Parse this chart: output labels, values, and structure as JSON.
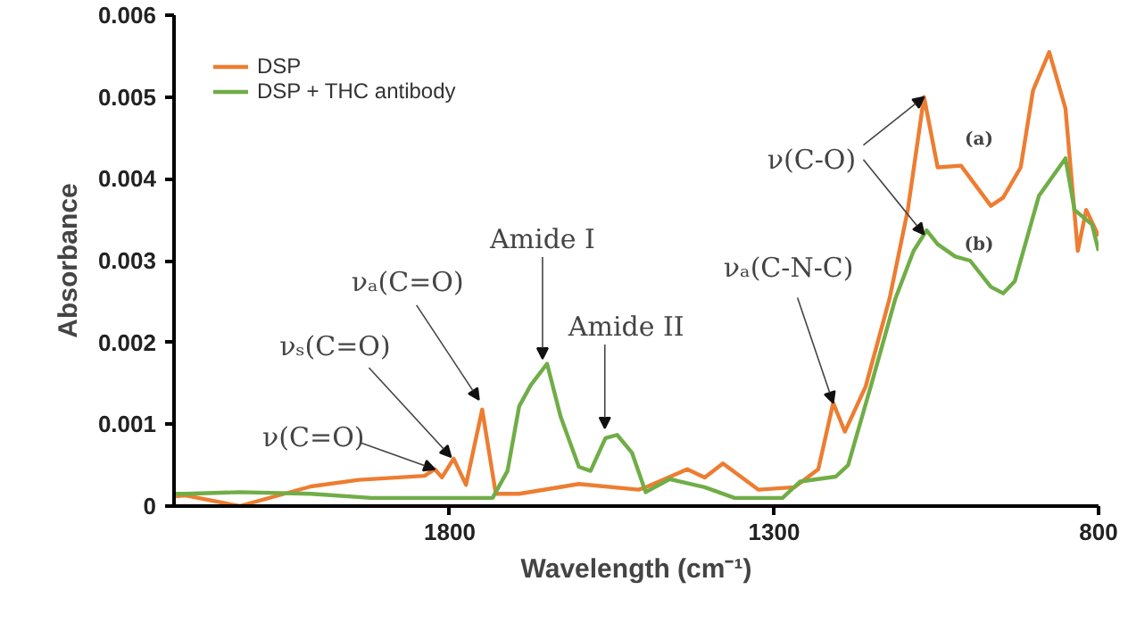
{
  "chart_data": {
    "type": "line",
    "xlabel": "Wavelength (cm⁻¹)",
    "ylabel": "Absorbance",
    "xlim": [
      2225,
      800
    ],
    "xticks": [
      1800,
      1300,
      800
    ],
    "ylim": [
      0,
      0.006
    ],
    "yticks": [
      0,
      0.001,
      0.002,
      0.003,
      0.004,
      0.005,
      0.006
    ],
    "grid": false,
    "legend": "top left",
    "marker": "none",
    "line_style": "solid",
    "series": [
      {
        "name": "DSP",
        "color": "#ed7d31",
        "x": [
          2225,
          2207,
          2124,
          2014,
          1940,
          1839,
          1823,
          1812,
          1794,
          1775,
          1750,
          1729,
          1693,
          1601,
          1509,
          1498,
          1434,
          1407,
          1379,
          1324,
          1269,
          1232,
          1209,
          1191,
          1159,
          1122,
          1094,
          1069,
          1048,
          1012,
          966,
          947,
          920,
          901,
          876,
          851,
          832,
          819,
          800
        ],
        "values": [
          0.00012,
          0.00013,
          0.0,
          0.00024,
          0.00032,
          0.00037,
          0.00045,
          0.00035,
          0.00058,
          0.00026,
          0.00118,
          0.00015,
          0.00015,
          0.00027,
          0.0002,
          0.00023,
          0.00045,
          0.00035,
          0.00052,
          0.0002,
          0.00023,
          0.00045,
          0.00126,
          0.00091,
          0.00146,
          0.00254,
          0.00362,
          0.005,
          0.00414,
          0.00416,
          0.00367,
          0.00377,
          0.00414,
          0.00508,
          0.00555,
          0.00486,
          0.00312,
          0.00362,
          0.0033
        ]
      },
      {
        "name": "DSP + THC antibody",
        "color": "#70ad47",
        "x": [
          2225,
          2207,
          2124,
          2014,
          1921,
          1830,
          1757,
          1734,
          1711,
          1693,
          1675,
          1650,
          1629,
          1601,
          1583,
          1560,
          1542,
          1519,
          1498,
          1461,
          1407,
          1361,
          1287,
          1260,
          1205,
          1186,
          1149,
          1113,
          1085,
          1065,
          1048,
          1021,
          998,
          966,
          947,
          929,
          892,
          851,
          837,
          810,
          800
        ],
        "values": [
          0.00015,
          0.00015,
          0.00017,
          0.00015,
          0.0001,
          0.0001,
          0.0001,
          0.0001,
          0.00043,
          0.00122,
          0.00148,
          0.00174,
          0.00109,
          0.00048,
          0.00043,
          0.00083,
          0.00087,
          0.00065,
          0.00017,
          0.00033,
          0.00023,
          0.0001,
          0.0001,
          0.0003,
          0.00036,
          0.0005,
          0.00152,
          0.00254,
          0.00312,
          0.00337,
          0.0032,
          0.00305,
          0.003,
          0.00268,
          0.0026,
          0.00275,
          0.00379,
          0.00425,
          0.00362,
          0.00344,
          0.00312
        ]
      }
    ],
    "annotations": [
      {
        "text": "ν(C=O)",
        "x": 1823,
        "y": 0.00045
      },
      {
        "text": "νₛ(C=O)",
        "x": 1798,
        "y": 0.0006
      },
      {
        "text": "νₐ(C=O)",
        "x": 1755,
        "y": 0.0013
      },
      {
        "text": "Amide I",
        "x": 1657,
        "y": 0.0018
      },
      {
        "text": "Amide II",
        "x": 1561,
        "y": 0.00095
      },
      {
        "text": "νₐ(C-N-C)",
        "x": 1209,
        "y": 0.00126
      },
      {
        "text": "ν(C-O)",
        "x": 1069,
        "y": 0.005
      },
      "(a)",
      "(b)"
    ]
  }
}
